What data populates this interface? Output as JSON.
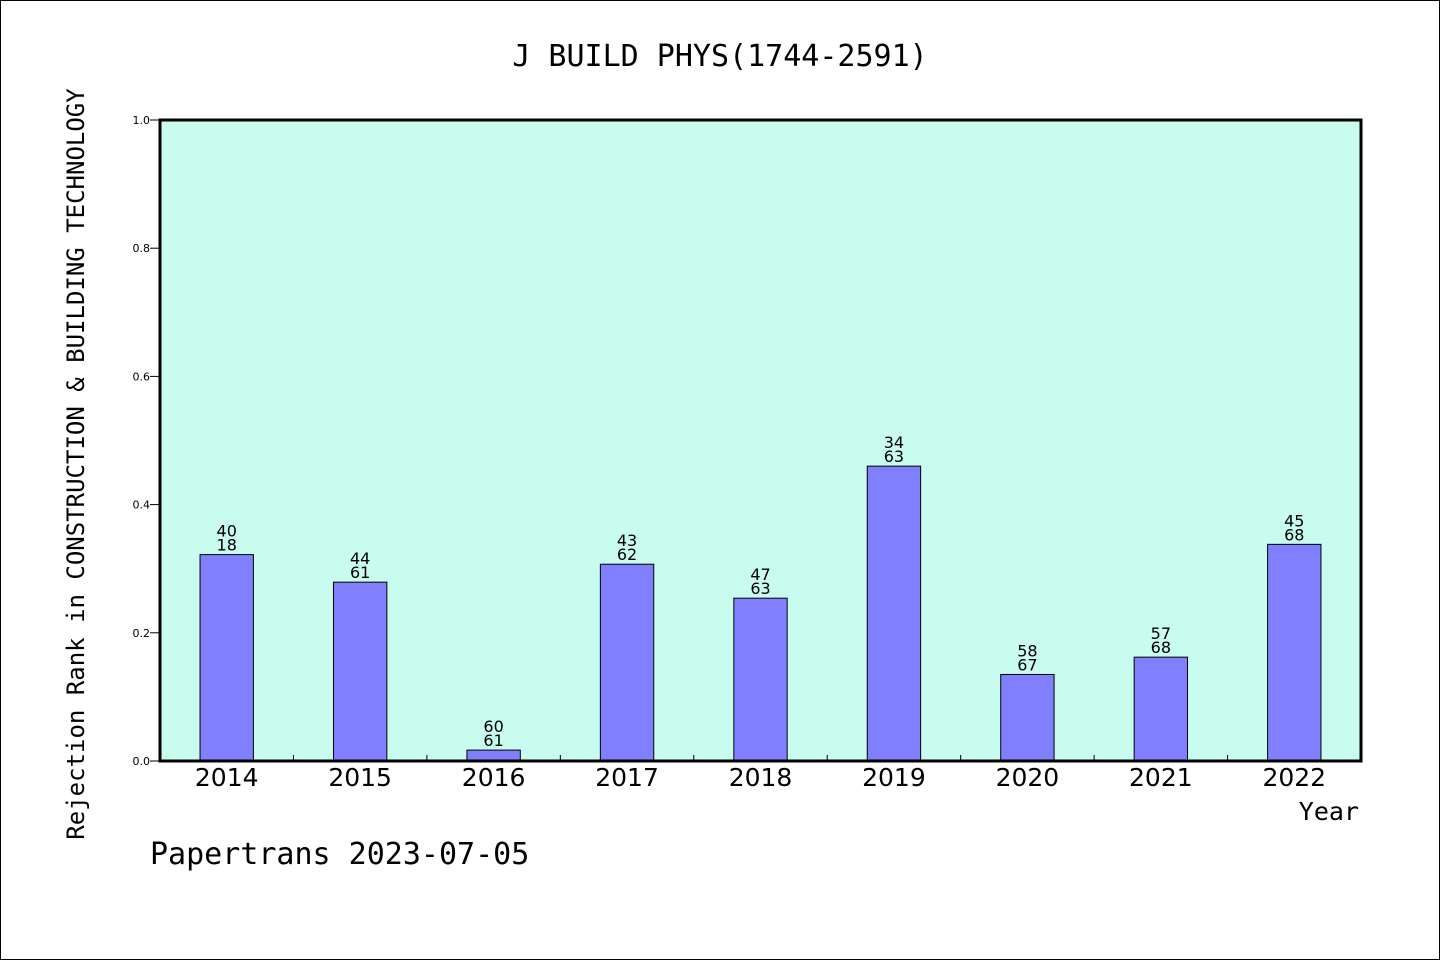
{
  "chart_data": {
    "type": "bar",
    "title": "J BUILD PHYS(1744-2591)",
    "xlabel": "Year",
    "ylabel": "Rejection Rank in CONSTRUCTION & BUILDING TECHNOLOGY",
    "categories": [
      "2014",
      "2015",
      "2016",
      "2017",
      "2018",
      "2019",
      "2020",
      "2021",
      "2022"
    ],
    "values": [
      0.322,
      0.279,
      0.017,
      0.307,
      0.254,
      0.46,
      0.135,
      0.162,
      0.338
    ],
    "bar_labels": [
      [
        "40",
        "18"
      ],
      [
        "44",
        "61"
      ],
      [
        "60",
        "61"
      ],
      [
        "43",
        "62"
      ],
      [
        "47",
        "63"
      ],
      [
        "34",
        "63"
      ],
      [
        "58",
        "67"
      ],
      [
        "57",
        "68"
      ],
      [
        "45",
        "68"
      ]
    ],
    "ylim": [
      0,
      1.0
    ],
    "yticks": [
      "0.0",
      "0.2",
      "0.4",
      "0.6",
      "0.8",
      "1.0"
    ],
    "grid": false,
    "colors": {
      "plot_background": "#c8fcee",
      "bar_fill": "#8080ff",
      "bar_stroke": "#000000"
    }
  },
  "footer": {
    "text": "Papertrans 2023-07-05"
  }
}
